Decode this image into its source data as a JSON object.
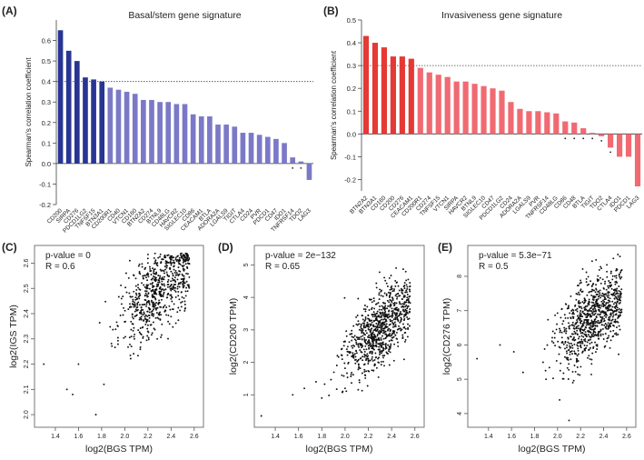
{
  "chart_data": [
    {
      "panel": "(A)",
      "type": "bar",
      "title": "Basal/stem gene signature",
      "xlabel": "",
      "ylabel": "Spearman's correlation coefficient",
      "ylim": [
        -0.2,
        0.7
      ],
      "yticks": [
        -0.2,
        -0.1,
        0.0,
        0.1,
        0.2,
        0.3,
        0.4,
        0.5,
        0.6
      ],
      "threshold": 0.4,
      "grid": false,
      "categories": [
        "CD200",
        "SIRPA",
        "CD276",
        "PDCD1LG2",
        "TNFSF15",
        "BTN3A1",
        "CD200R1",
        "CD40",
        "VTCN1",
        "CD160",
        "BTN2A2",
        "CD274",
        "BTNL9",
        "CD48LG",
        "HAVCR2",
        "SIGLEC10",
        "CD86",
        "CEACAM1",
        "BTLA",
        "ADORA2A",
        "LGALS9",
        "TIGIT",
        "CTLA4",
        "CD24",
        "PVR",
        "PDCD1",
        "CD47",
        "IDO1",
        "TNFRSF14",
        "TDO2",
        "LAG3"
      ],
      "values": [
        0.65,
        0.55,
        0.5,
        0.42,
        0.41,
        0.4,
        0.37,
        0.36,
        0.35,
        0.34,
        0.31,
        0.31,
        0.3,
        0.3,
        0.29,
        0.29,
        0.24,
        0.23,
        0.23,
        0.19,
        0.19,
        0.18,
        0.15,
        0.15,
        0.14,
        0.13,
        0.12,
        0.1,
        0.03,
        0.01,
        -0.08
      ],
      "colors": {
        "strong": "#283593",
        "weak": "#7b79c7"
      },
      "dot_markers": [
        "TNFRSF14",
        "TDO2"
      ]
    },
    {
      "panel": "(B)",
      "type": "bar",
      "title": "Invasiveness gene signature",
      "xlabel": "",
      "ylabel": "Spearman's correlation coefficient",
      "ylim": [
        -0.25,
        0.5
      ],
      "yticks": [
        -0.2,
        -0.1,
        0.0,
        0.1,
        0.2,
        0.3,
        0.4,
        0.5
      ],
      "threshold": 0.3,
      "grid": false,
      "categories": [
        "BTN2A2",
        "BTN3A1",
        "CD160",
        "CD200",
        "CD276",
        "CEACAM1",
        "CD200R1",
        "CD274",
        "TNFSF15",
        "VTCN1",
        "SIRPA",
        "HAVCR2",
        "BTNL9",
        "SIGLEC10",
        "CD47",
        "PDCD1LG2",
        "CD24",
        "ADORA2A",
        "LGALS9",
        "PVR",
        "TNFRSF14",
        "CD48LG",
        "CD86",
        "CD48",
        "BTLA",
        "TIGIT",
        "TDO2",
        "CTLA4",
        "IDO1",
        "PDCD1",
        "LAG3"
      ],
      "values": [
        0.43,
        0.4,
        0.38,
        0.34,
        0.34,
        0.33,
        0.29,
        0.27,
        0.26,
        0.25,
        0.23,
        0.23,
        0.22,
        0.21,
        0.2,
        0.19,
        0.14,
        0.11,
        0.1,
        0.1,
        0.095,
        0.09,
        0.055,
        0.05,
        0.025,
        0.005,
        -0.01,
        -0.06,
        -0.1,
        -0.1,
        -0.23
      ],
      "colors": {
        "strong": "#e53935",
        "weak": "#f06a72"
      },
      "dot_markers": [
        "CD86",
        "CD48",
        "BTLA",
        "TIGIT",
        "TDO2",
        "CTLA4"
      ]
    },
    {
      "panel": "(C)",
      "type": "scatter",
      "title": "",
      "xlabel": "log2(BGS TPM)",
      "ylabel": "log2(IGS TPM)",
      "annotation": [
        "p-value = 0",
        "R = 0.6"
      ],
      "xlim": [
        1.22,
        2.68
      ],
      "ylim": [
        1.95,
        2.67
      ],
      "xticks": [
        "1.4",
        "1.6",
        "1.8",
        "2.0",
        "2.2",
        "2.4",
        "2.6"
      ],
      "yticks": [
        "2.0",
        "2.1",
        "2.2",
        "2.3",
        "2.4",
        "2.5",
        "2.6"
      ],
      "n_points": 700,
      "x_center": 2.3,
      "x_sd": 0.17,
      "slope": 0.38,
      "y_center": 2.5,
      "y_sd": 0.085,
      "y_max": 2.64,
      "outliers": [
        [
          1.3,
          2.2
        ],
        [
          1.5,
          2.1
        ],
        [
          1.6,
          2.2
        ],
        [
          1.75,
          2.0
        ],
        [
          1.55,
          2.08
        ],
        [
          1.82,
          2.12
        ]
      ]
    },
    {
      "panel": "(D)",
      "type": "scatter",
      "title": "",
      "xlabel": "log2(BGS TPM)",
      "ylabel": "log2(CD200 TPM)",
      "annotation": [
        "p-value = 2e−132",
        "R = 0.65"
      ],
      "xlim": [
        1.22,
        2.68
      ],
      "ylim": [
        0,
        5.6
      ],
      "xticks": [
        "1.4",
        "1.6",
        "1.8",
        "2.0",
        "2.2",
        "2.4",
        "2.6"
      ],
      "yticks": [
        "1",
        "2",
        "3",
        "4",
        "5"
      ],
      "n_points": 850,
      "x_center": 2.3,
      "x_sd": 0.16,
      "slope": 3.2,
      "y_center": 3.05,
      "y_sd": 0.55,
      "y_max": 5.3,
      "outliers": [
        [
          1.28,
          0.35
        ],
        [
          1.55,
          1.0
        ],
        [
          1.8,
          0.9
        ],
        [
          2.0,
          1.2
        ],
        [
          1.75,
          1.4
        ],
        [
          1.65,
          1.2
        ]
      ]
    },
    {
      "panel": "(E)",
      "type": "scatter",
      "title": "",
      "xlabel": "log2(BGS TPM)",
      "ylabel": "log2(CD276 TPM)",
      "annotation": [
        "p-value = 5.3e−71",
        "R = 0.5"
      ],
      "xlim": [
        1.22,
        2.68
      ],
      "ylim": [
        3.6,
        8.9
      ],
      "xticks": [
        "1.4",
        "1.6",
        "1.8",
        "2.0",
        "2.2",
        "2.4",
        "2.6"
      ],
      "yticks": [
        "4",
        "5",
        "6",
        "7",
        "8"
      ],
      "n_points": 850,
      "x_center": 2.3,
      "x_sd": 0.16,
      "slope": 2.6,
      "y_center": 6.75,
      "y_sd": 0.55,
      "y_max": 8.7,
      "outliers": [
        [
          1.3,
          5.6
        ],
        [
          2.1,
          3.8
        ],
        [
          1.5,
          6.0
        ],
        [
          1.62,
          5.8
        ],
        [
          1.7,
          5.2
        ],
        [
          1.9,
          5.0
        ]
      ]
    }
  ]
}
